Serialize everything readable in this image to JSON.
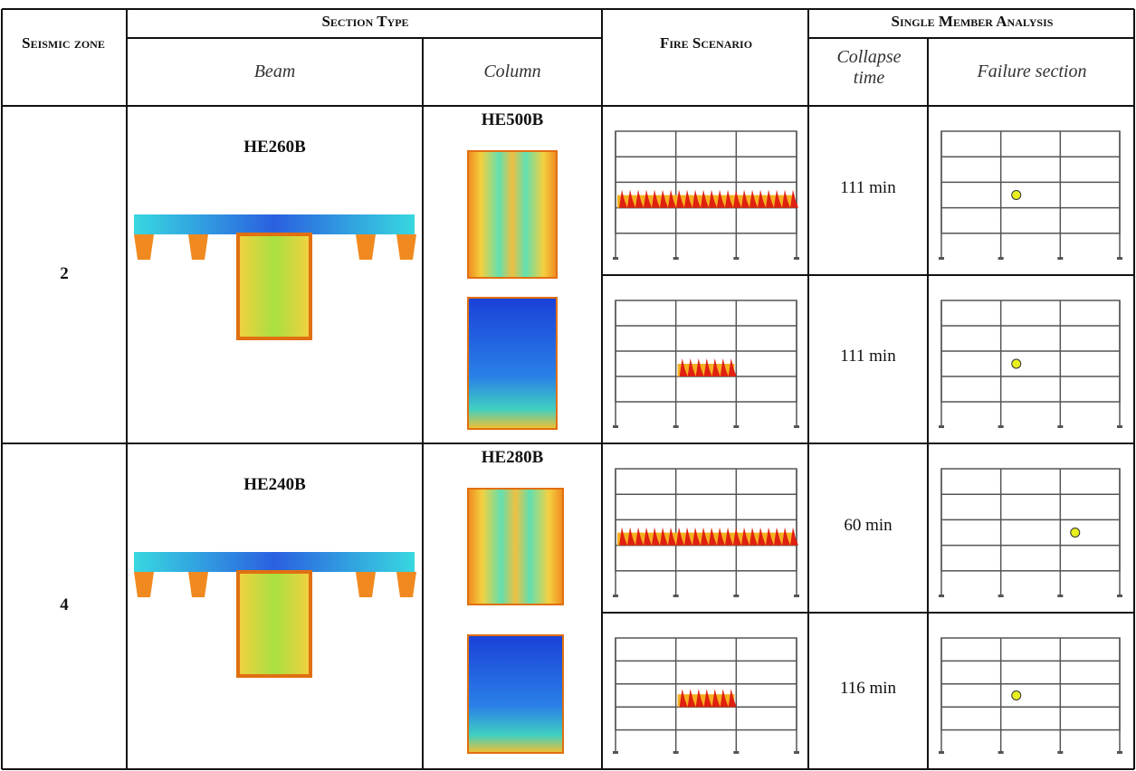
{
  "table": {
    "header": {
      "seismic_zone": "Seismic zone",
      "section_type": "Section Type",
      "beam": "Beam",
      "column": "Column",
      "fire_scenario": "Fire Scenario",
      "single_member_analysis": "Single Member Analysis",
      "collapse_time": "Collapse time",
      "failure_section": "Failure section"
    },
    "rows": [
      {
        "zone": "2",
        "beam": "HE260B",
        "column": "HE500B",
        "scenarios": [
          {
            "collapse_time": "111 min"
          },
          {
            "collapse_time": "111 min"
          }
        ]
      },
      {
        "zone": "4",
        "beam": "HE240B",
        "column": "HE280B",
        "scenarios": [
          {
            "collapse_time": "60 min"
          },
          {
            "collapse_time": "116 min"
          }
        ]
      }
    ]
  }
}
